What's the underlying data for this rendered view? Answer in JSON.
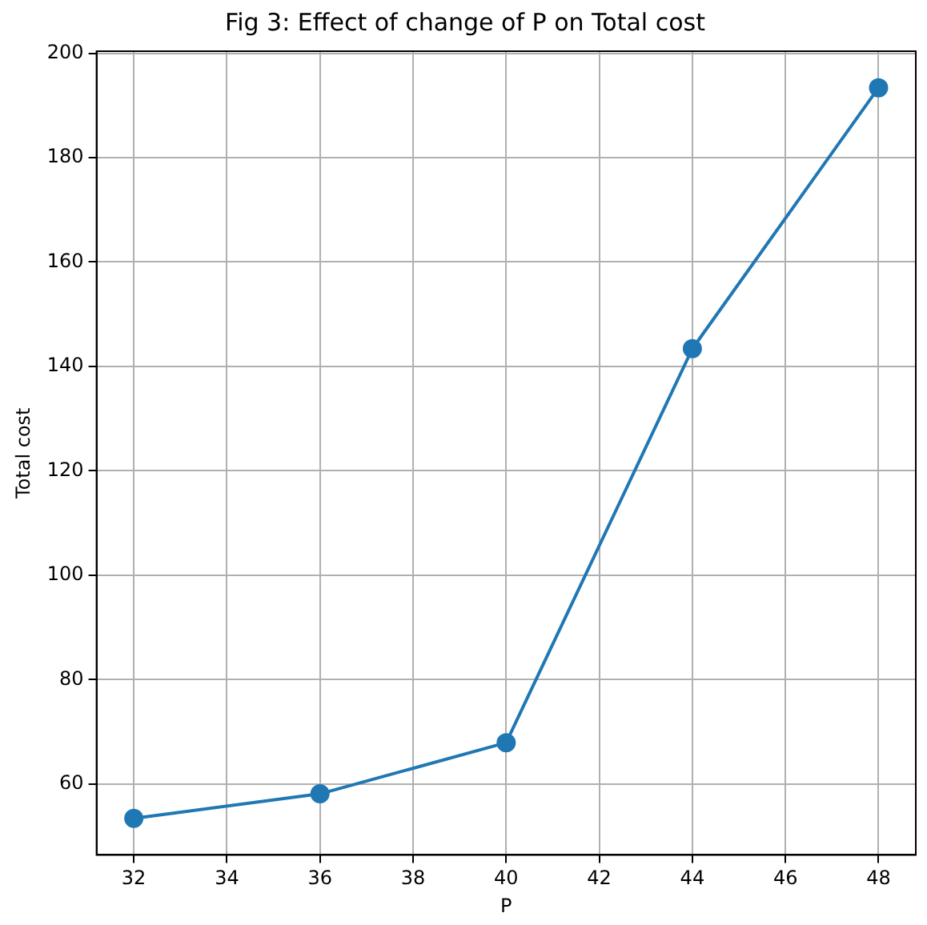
{
  "chart_data": {
    "type": "line",
    "title": "Fig 3: Effect of change of P on Total cost",
    "xlabel": "P",
    "ylabel": "Total cost",
    "x": [
      32,
      36,
      40,
      44,
      48
    ],
    "series": [
      {
        "color": "#1f77b4",
        "values": [
          53.4,
          58.1,
          67.9,
          143.4,
          193.4
        ]
      }
    ],
    "xlim": [
      31.2,
      48.8
    ],
    "xticks": [
      32,
      34,
      36,
      38,
      40,
      42,
      44,
      46,
      48
    ],
    "ylim": [
      46.4,
      200.4
    ],
    "yticks": [
      60,
      80,
      100,
      120,
      140,
      160,
      180,
      200
    ],
    "grid": true,
    "marker": "circle",
    "line_style": "solid",
    "legend": false
  }
}
